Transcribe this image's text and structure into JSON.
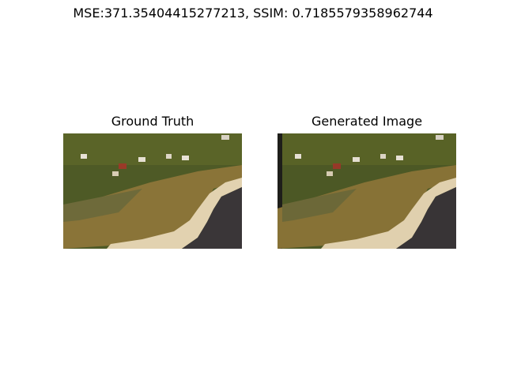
{
  "figure": {
    "suptitle": "MSE:371.35404415277213, SSIM: 0.7185579358962744"
  },
  "panels": [
    {
      "title": "Ground Truth",
      "image": "aerial-coastal-photo"
    },
    {
      "title": "Generated Image",
      "image": "aerial-coastal-photo-generated"
    }
  ],
  "colors": {
    "background": "#ffffff",
    "trees": "#4a5a24",
    "marsh": "#8a7438",
    "sand": "#e0cfae",
    "water": "#3a3638"
  }
}
